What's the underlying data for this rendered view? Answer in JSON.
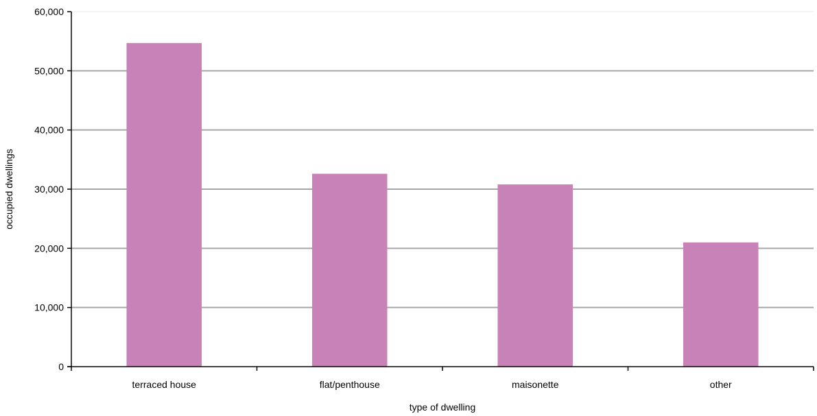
{
  "chart_data": {
    "type": "bar",
    "categories": [
      "terraced house",
      "flat/penthouse",
      "maisonette",
      "other"
    ],
    "values": [
      54700,
      32600,
      30800,
      21000
    ],
    "xlabel": "type of dwelling",
    "ylabel": "occupied dwellings",
    "ylim": [
      0,
      60000
    ],
    "yticks": [
      0,
      10000,
      20000,
      30000,
      40000,
      50000,
      60000
    ],
    "ytick_labels": [
      "0",
      "10,000",
      "20,000",
      "30,000",
      "40,000",
      "50,000",
      "60,000"
    ],
    "grid": true,
    "legend": "none",
    "bar_color": "#c882b7",
    "grid_color": "#a6a6a6"
  }
}
